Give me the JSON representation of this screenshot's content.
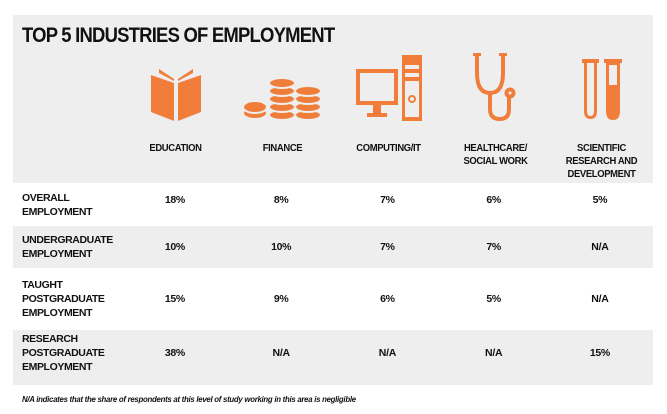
{
  "title": "TOP 5 INDUSTRIES OF EMPLOYMENT",
  "accent_color": "#f07e3a",
  "industries": [
    {
      "label_lines": [
        "EDUCATION"
      ],
      "icon": "book-icon"
    },
    {
      "label_lines": [
        "FINANCE"
      ],
      "icon": "coins-icon"
    },
    {
      "label_lines": [
        "COMPUTING/IT"
      ],
      "icon": "computer-icon"
    },
    {
      "label_lines": [
        "HEALTHCARE/",
        "SOCIAL WORK"
      ],
      "icon": "stethoscope-icon"
    },
    {
      "label_lines": [
        "SCIENTIFIC",
        "RESEARCH AND",
        "DEVELOPMENT"
      ],
      "icon": "test-tubes-icon"
    }
  ],
  "rows": [
    {
      "label_lines": [
        "OVERALL",
        "EMPLOYMENT"
      ],
      "values": [
        "18%",
        "8%",
        "7%",
        "6%",
        "5%"
      ]
    },
    {
      "label_lines": [
        "UNDERGRADUATE",
        "EMPLOYMENT"
      ],
      "values": [
        "10%",
        "10%",
        "7%",
        "7%",
        "N/A"
      ]
    },
    {
      "label_lines": [
        "TAUGHT",
        "POSTGRADUATE",
        "EMPLOYMENT"
      ],
      "values": [
        "15%",
        "9%",
        "6%",
        "5%",
        "N/A"
      ]
    },
    {
      "label_lines": [
        "RESEARCH",
        "POSTGRADUATE",
        "EMPLOYMENT"
      ],
      "values": [
        "38%",
        "N/A",
        "N/A",
        "N/A",
        "15%"
      ]
    }
  ],
  "footnote": "N/A indicates that the share of respondents at this level of study working in this area is negligible"
}
